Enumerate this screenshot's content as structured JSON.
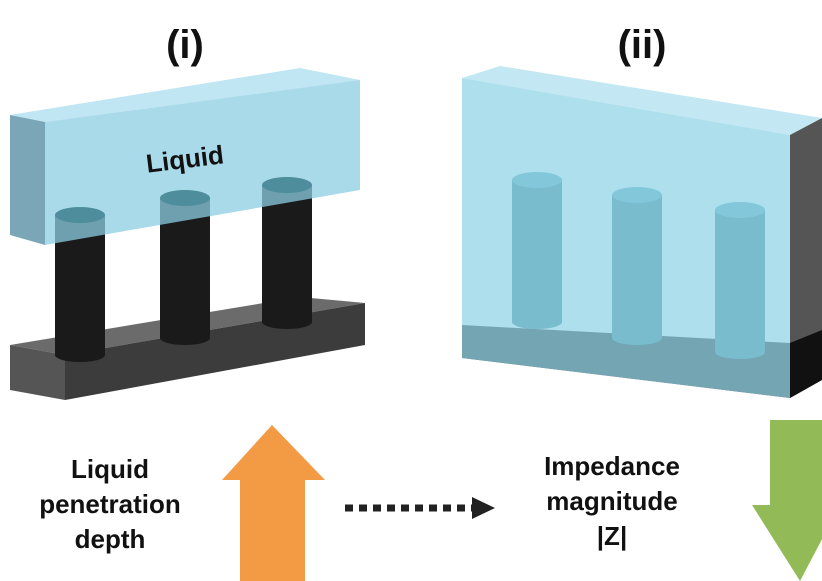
{
  "labels": {
    "panel_1": "(i)",
    "panel_2": "(ii)",
    "liquid": "Liquid"
  },
  "left_caption": [
    "Liquid",
    "penetration",
    "depth"
  ],
  "right_caption": [
    "Impedance",
    "magnitude",
    "|Z|"
  ]
}
